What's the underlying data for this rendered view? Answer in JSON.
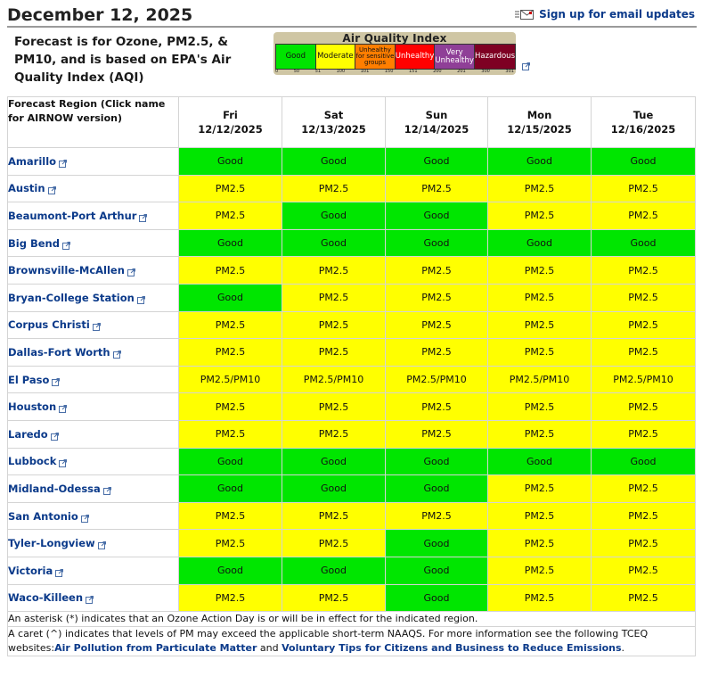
{
  "header": {
    "date": "December 12, 2025",
    "email_link": "Sign up for email updates"
  },
  "intro": "Forecast is for Ozone, PM2.5, & PM10, and is based on EPA's Air Quality Index (AQI)",
  "aqi_legend": {
    "title": "Air Quality Index",
    "categories": [
      {
        "label": "Good",
        "color": "#00e400"
      },
      {
        "label": "Moderate",
        "color": "#ffff00"
      },
      {
        "label": "Unhealthy for sensitive groups",
        "color": "#ff7e00"
      },
      {
        "label": "Unhealthy",
        "color": "#ff0000"
      },
      {
        "label": "Very Unhealthy",
        "color": "#8f3f97"
      },
      {
        "label": "Hazardous",
        "color": "#7e0023"
      }
    ],
    "scale": [
      "0",
      "50",
      "51",
      "100",
      "101",
      "150",
      "151",
      "200",
      "201",
      "300",
      "301"
    ]
  },
  "table": {
    "region_header": "Forecast Region (Click name for AIRNOW version)",
    "days": [
      {
        "day": "Fri",
        "date": "12/12/2025"
      },
      {
        "day": "Sat",
        "date": "12/13/2025"
      },
      {
        "day": "Sun",
        "date": "12/14/2025"
      },
      {
        "day": "Mon",
        "date": "12/15/2025"
      },
      {
        "day": "Tue",
        "date": "12/16/2025"
      }
    ],
    "rows": [
      {
        "region": "Amarillo",
        "values": [
          "Good",
          "Good",
          "Good",
          "Good",
          "Good"
        ]
      },
      {
        "region": "Austin",
        "values": [
          "PM2.5",
          "PM2.5",
          "PM2.5",
          "PM2.5",
          "PM2.5"
        ]
      },
      {
        "region": "Beaumont-Port Arthur",
        "values": [
          "PM2.5",
          "Good",
          "Good",
          "PM2.5",
          "PM2.5"
        ]
      },
      {
        "region": "Big Bend",
        "values": [
          "Good",
          "Good",
          "Good",
          "Good",
          "Good"
        ]
      },
      {
        "region": "Brownsville-McAllen",
        "values": [
          "PM2.5",
          "PM2.5",
          "PM2.5",
          "PM2.5",
          "PM2.5"
        ]
      },
      {
        "region": "Bryan-College Station",
        "values": [
          "Good",
          "PM2.5",
          "PM2.5",
          "PM2.5",
          "PM2.5"
        ]
      },
      {
        "region": "Corpus Christi",
        "values": [
          "PM2.5",
          "PM2.5",
          "PM2.5",
          "PM2.5",
          "PM2.5"
        ]
      },
      {
        "region": "Dallas-Fort Worth",
        "values": [
          "PM2.5",
          "PM2.5",
          "PM2.5",
          "PM2.5",
          "PM2.5"
        ]
      },
      {
        "region": "El Paso",
        "values": [
          "PM2.5/PM10",
          "PM2.5/PM10",
          "PM2.5/PM10",
          "PM2.5/PM10",
          "PM2.5/PM10"
        ]
      },
      {
        "region": "Houston",
        "values": [
          "PM2.5",
          "PM2.5",
          "PM2.5",
          "PM2.5",
          "PM2.5"
        ]
      },
      {
        "region": "Laredo",
        "values": [
          "PM2.5",
          "PM2.5",
          "PM2.5",
          "PM2.5",
          "PM2.5"
        ]
      },
      {
        "region": "Lubbock",
        "values": [
          "Good",
          "Good",
          "Good",
          "Good",
          "Good"
        ]
      },
      {
        "region": "Midland-Odessa",
        "values": [
          "Good",
          "Good",
          "Good",
          "PM2.5",
          "PM2.5"
        ]
      },
      {
        "region": "San Antonio",
        "values": [
          "PM2.5",
          "PM2.5",
          "PM2.5",
          "PM2.5",
          "PM2.5"
        ]
      },
      {
        "region": "Tyler-Longview",
        "values": [
          "PM2.5",
          "PM2.5",
          "Good",
          "PM2.5",
          "PM2.5"
        ]
      },
      {
        "region": "Victoria",
        "values": [
          "Good",
          "Good",
          "Good",
          "PM2.5",
          "PM2.5"
        ]
      },
      {
        "region": "Waco-Killeen",
        "values": [
          "PM2.5",
          "PM2.5",
          "Good",
          "PM2.5",
          "PM2.5"
        ]
      }
    ],
    "colors": {
      "good": "#00e600",
      "moderate": "#ffff00"
    }
  },
  "notes": {
    "asterisk": "An asterisk (*) indicates that an Ozone Action Day is or will be in effect for the indicated region.",
    "caret_prefix": "A caret (^) indicates that levels of PM may exceed the applicable short-term NAAQS. For more information see the following TCEQ websites:",
    "link1": "Air Pollution from Particulate Matter",
    "and": " and ",
    "link2": "Voluntary Tips for Citizens and Business to Reduce Emissions",
    "end": "."
  }
}
